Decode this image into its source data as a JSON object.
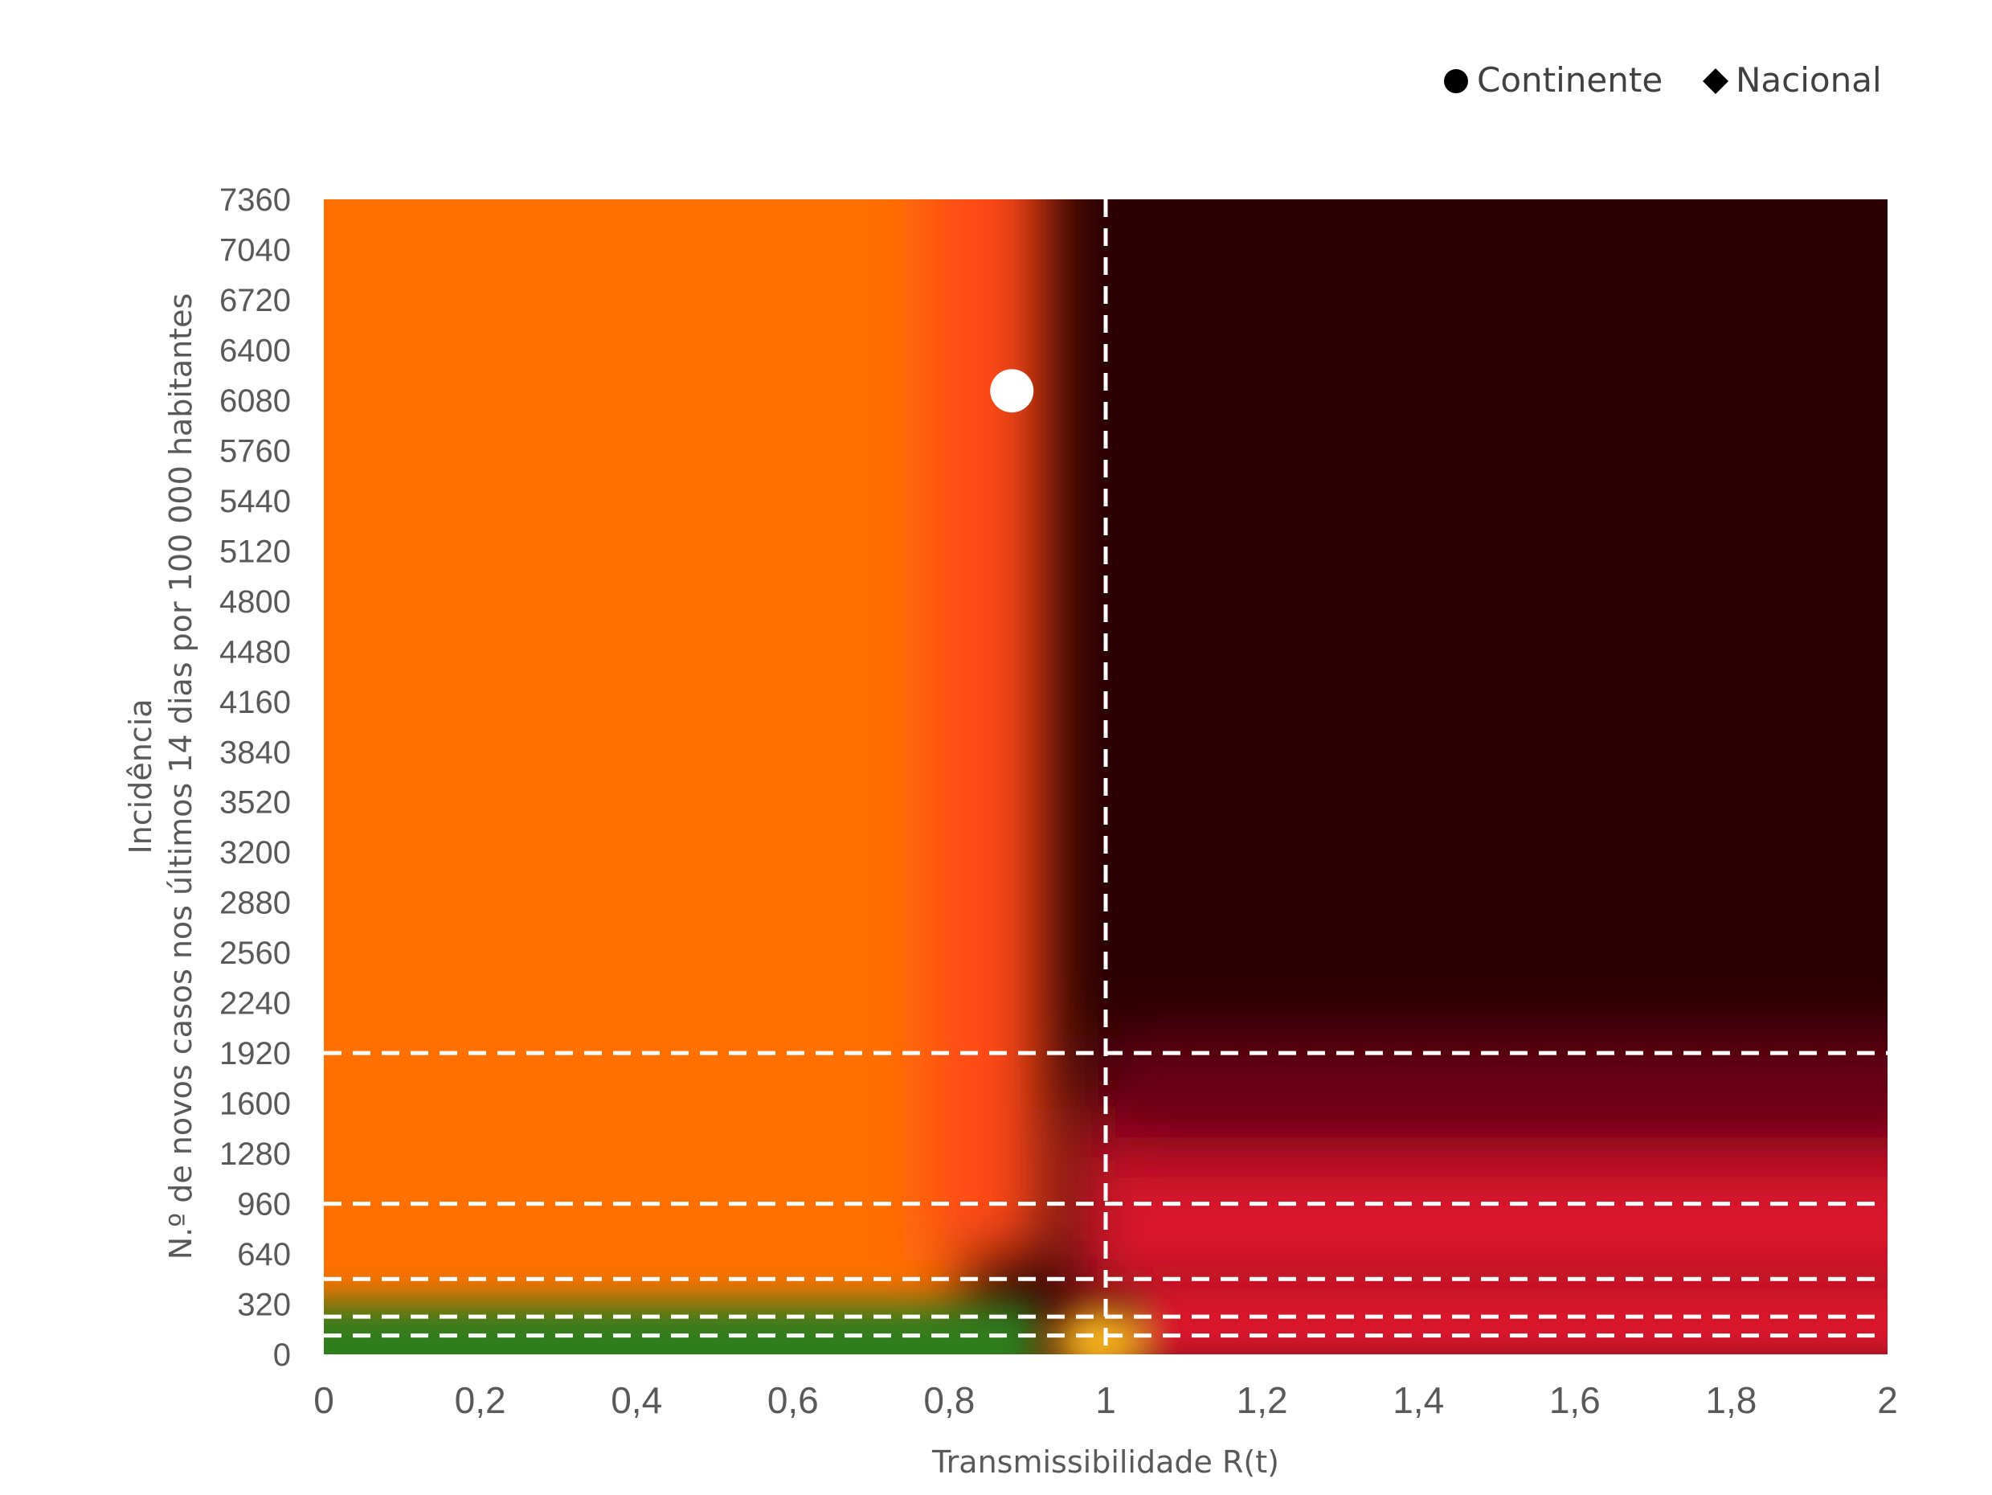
{
  "chart_data": {
    "type": "scatter",
    "title": "",
    "xlabel": "Transmissibilidade R(t)",
    "ylabel_line1": "Incidência",
    "ylabel_line2": "N.º de novos casos nos últimos 14 dias por 100 000 habitantes",
    "xlim": [
      0,
      2
    ],
    "ylim": [
      0,
      7360
    ],
    "x_ticks": [
      "0",
      "0,2",
      "0,4",
      "0,6",
      "0,8",
      "1",
      "1,2",
      "1,4",
      "1,6",
      "1,8",
      "2"
    ],
    "x_tick_values": [
      0,
      0.2,
      0.4,
      0.6,
      0.8,
      1,
      1.2,
      1.4,
      1.6,
      1.8,
      2
    ],
    "y_ticks": [
      "0",
      "320",
      "640",
      "960",
      "1280",
      "1600",
      "1920",
      "2240",
      "2560",
      "2880",
      "3200",
      "3520",
      "3840",
      "4160",
      "4480",
      "4800",
      "5120",
      "5440",
      "5760",
      "6080",
      "6400",
      "6720",
      "7040",
      "7360"
    ],
    "y_tick_values": [
      0,
      320,
      640,
      960,
      1280,
      1600,
      1920,
      2240,
      2560,
      2880,
      3200,
      3520,
      3840,
      4160,
      4480,
      4800,
      5120,
      5440,
      5760,
      6080,
      6400,
      6720,
      7040,
      7360
    ],
    "reference_lines": {
      "vertical_x": 1,
      "horizontal_y": [
        120,
        240,
        480,
        960,
        1920
      ]
    },
    "background_zones": {
      "green": "#2e7d1e",
      "yellow": "#f7b21a",
      "orange": "#ff7000",
      "red_orange": "#ff4a12",
      "red": "#d8132a",
      "crimson": "#6b0015",
      "dark": "#2a0002"
    },
    "series": [
      {
        "name": "Continente",
        "marker": "circle",
        "points": [
          {
            "x": 0.88,
            "y": 6140
          }
        ]
      },
      {
        "name": "Nacional",
        "marker": "diamond",
        "points": []
      }
    ],
    "point_color": "#ffffff",
    "legend_position": "top-right",
    "grid": false
  }
}
